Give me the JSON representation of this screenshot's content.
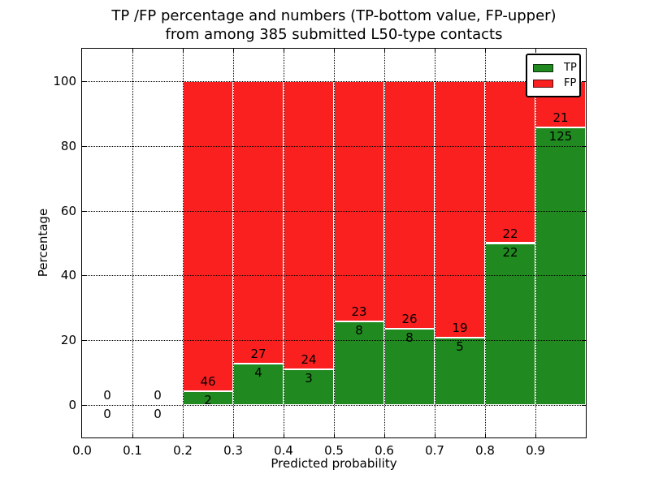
{
  "chart_data": {
    "type": "bar",
    "stacked": true,
    "title_line1": "TP /FP percentage and numbers (TP-bottom value, FP-upper)",
    "title_line2": "from among 385 submitted L50-type contacts",
    "xlabel": "Predicted probability",
    "ylabel": "Percentage",
    "xlim": [
      0.0,
      1.0
    ],
    "ylim": [
      -10,
      110
    ],
    "xticks": [
      "0.0",
      "0.1",
      "0.2",
      "0.3",
      "0.4",
      "0.5",
      "0.6",
      "0.7",
      "0.8",
      "0.9"
    ],
    "yticks": [
      "0",
      "20",
      "40",
      "60",
      "80",
      "100"
    ],
    "grid": true,
    "grid_style": "dotted",
    "total_contacts": 385,
    "legend": {
      "position": "upper right",
      "entries": [
        {
          "label": "TP",
          "color": "#208a20"
        },
        {
          "label": "FP",
          "color": "#fa2020"
        }
      ]
    },
    "bins": [
      {
        "x_start": 0.0,
        "x_end": 0.1,
        "tp": 0,
        "fp": 0
      },
      {
        "x_start": 0.1,
        "x_end": 0.2,
        "tp": 0,
        "fp": 0
      },
      {
        "x_start": 0.2,
        "x_end": 0.3,
        "tp": 2,
        "fp": 46
      },
      {
        "x_start": 0.3,
        "x_end": 0.4,
        "tp": 4,
        "fp": 27
      },
      {
        "x_start": 0.4,
        "x_end": 0.5,
        "tp": 3,
        "fp": 24
      },
      {
        "x_start": 0.5,
        "x_end": 0.6,
        "tp": 8,
        "fp": 23
      },
      {
        "x_start": 0.6,
        "x_end": 0.7,
        "tp": 8,
        "fp": 26
      },
      {
        "x_start": 0.7,
        "x_end": 0.8,
        "tp": 5,
        "fp": 19
      },
      {
        "x_start": 0.8,
        "x_end": 0.9,
        "tp": 22,
        "fp": 22
      },
      {
        "x_start": 0.9,
        "x_end": 1.0,
        "tp": 125,
        "fp": 21
      }
    ],
    "colors": {
      "tp": "#208a20",
      "fp": "#fa2020",
      "bar_edge": "#ffffff",
      "grid": "#000000",
      "text": "#000000",
      "background": "#ffffff"
    }
  }
}
